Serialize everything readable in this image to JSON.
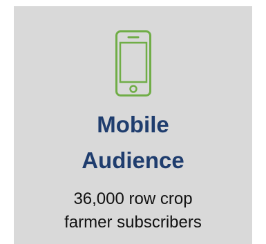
{
  "card": {
    "icon": "smartphone-icon",
    "icon_color": "#70ad47",
    "title_lines": [
      "Mobile",
      "Audience"
    ],
    "title_color": "#1f3d6e",
    "subtitle_lines": [
      "36,000 row crop",
      "farmer subscribers"
    ],
    "background": "#d9d9d9"
  }
}
